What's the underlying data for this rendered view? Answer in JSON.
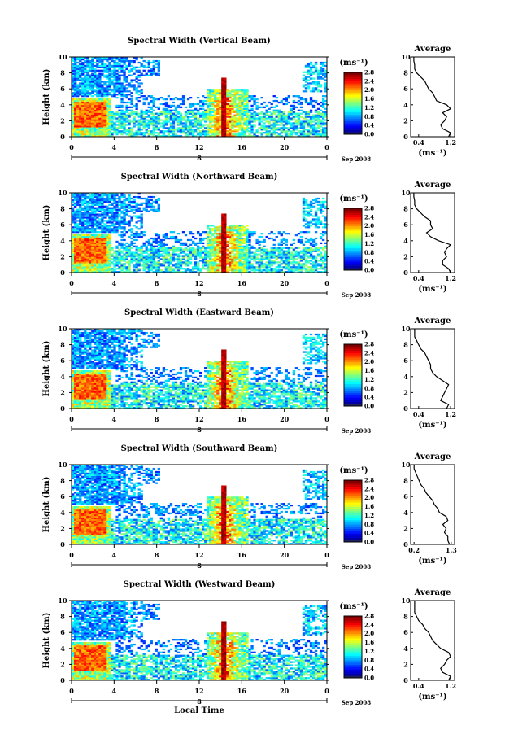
{
  "page": {
    "xlabel_bottom": "Local Time"
  },
  "chart_data": [
    {
      "type": "heatmap",
      "title": "Spectral Width (Vertical Beam)",
      "ylabel": "Height (km)",
      "xticks": [
        "0",
        "4",
        "8",
        "12",
        "16",
        "20",
        "0"
      ],
      "date_marker": "8",
      "date_label": "Sep 2008",
      "ylim": [
        0,
        10
      ],
      "yticks": [
        "0",
        "2",
        "4",
        "6",
        "8",
        "10"
      ],
      "colorbar": {
        "unit": "(ms⁻¹)",
        "ticks": [
          "0.0",
          "0.4",
          "0.8",
          "1.2",
          "1.6",
          "2.0",
          "2.4",
          "2.8"
        ],
        "range": [
          0,
          2.8
        ]
      },
      "average": {
        "title": "Average",
        "xlabel": "(ms⁻¹)",
        "xticks": [
          "0.4",
          "1.2"
        ],
        "xlim": [
          0.2,
          1.3
        ],
        "heights": [
          0,
          0.5,
          1,
          1.5,
          2,
          2.5,
          3,
          3.5,
          4,
          4.5,
          5,
          5.5,
          6,
          6.5,
          7,
          7.5,
          8,
          8.5,
          9,
          9.5,
          10
        ],
        "values": [
          1.15,
          1.2,
          1.0,
          0.95,
          1.05,
          1.1,
          1.0,
          1.2,
          1.1,
          0.85,
          0.8,
          0.75,
          0.65,
          0.6,
          0.55,
          0.45,
          0.35,
          0.3,
          0.3,
          0.28,
          0.28
        ]
      }
    },
    {
      "type": "heatmap",
      "title": "Spectral Width (Northward Beam)",
      "ylabel": "Height (km)",
      "xticks": [
        "0",
        "4",
        "8",
        "12",
        "16",
        "20",
        "0"
      ],
      "date_marker": "8",
      "date_label": "Sep 2008",
      "ylim": [
        0,
        10
      ],
      "yticks": [
        "0",
        "2",
        "4",
        "6",
        "8",
        "10"
      ],
      "colorbar": {
        "unit": "(ms⁻¹)",
        "ticks": [
          "0.0",
          "0.4",
          "0.8",
          "1.2",
          "1.6",
          "2.0",
          "2.4",
          "2.8"
        ],
        "range": [
          0,
          2.8
        ]
      },
      "average": {
        "title": "Average",
        "xlabel": "(ms⁻¹)",
        "xticks": [
          "0.4",
          "1.2"
        ],
        "xlim": [
          0.2,
          1.3
        ],
        "heights": [
          0,
          0.5,
          1,
          1.5,
          2,
          2.5,
          3,
          3.5,
          4,
          4.5,
          5,
          5.5,
          6,
          6.5,
          7,
          7.5,
          8,
          8.5,
          9,
          9.5,
          10
        ],
        "values": [
          1.2,
          1.15,
          1.0,
          1.0,
          1.1,
          1.05,
          1.1,
          1.2,
          0.9,
          0.7,
          0.6,
          0.75,
          0.7,
          0.7,
          0.55,
          0.45,
          0.35,
          0.3,
          0.3,
          0.28,
          0.28
        ]
      }
    },
    {
      "type": "heatmap",
      "title": "Spectral Width (Eastward Beam)",
      "ylabel": "Height (km)",
      "xticks": [
        "0",
        "4",
        "8",
        "12",
        "16",
        "20",
        "0"
      ],
      "date_marker": "8",
      "date_label": "Sep 2008",
      "ylim": [
        0,
        10
      ],
      "yticks": [
        "0",
        "2",
        "4",
        "6",
        "8",
        "10"
      ],
      "colorbar": {
        "unit": "(ms⁻¹)",
        "ticks": [
          "0.0",
          "0.4",
          "0.8",
          "1.2",
          "1.6",
          "2.0",
          "2.4",
          "2.8"
        ],
        "range": [
          0,
          2.8
        ]
      },
      "average": {
        "title": "Average",
        "xlabel": "(ms⁻¹)",
        "xticks": [
          "0.4",
          "1.2"
        ],
        "xlim": [
          0.2,
          1.3
        ],
        "heights": [
          0,
          0.5,
          1,
          1.5,
          2,
          2.5,
          3,
          3.5,
          4,
          4.5,
          5,
          5.5,
          6,
          6.5,
          7,
          7.5,
          8,
          8.5,
          9,
          9.5,
          10
        ],
        "values": [
          1.1,
          1.15,
          0.95,
          1.0,
          1.05,
          1.1,
          1.15,
          1.0,
          0.85,
          0.75,
          0.7,
          0.7,
          0.65,
          0.6,
          0.55,
          0.45,
          0.4,
          0.35,
          0.3,
          0.3,
          0.3
        ]
      }
    },
    {
      "type": "heatmap",
      "title": "Spectral Width (Southward Beam)",
      "ylabel": "Height (km)",
      "xticks": [
        "0",
        "4",
        "8",
        "12",
        "16",
        "20",
        "0"
      ],
      "date_marker": "8",
      "date_label": "Sep 2008",
      "ylim": [
        0,
        10
      ],
      "yticks": [
        "0",
        "2",
        "4",
        "6",
        "8",
        "10"
      ],
      "colorbar": {
        "unit": "(ms⁻¹)",
        "ticks": [
          "0.0",
          "0.4",
          "0.8",
          "1.2",
          "1.6",
          "2.0",
          "2.4",
          "2.8"
        ],
        "range": [
          0,
          2.8
        ]
      },
      "average": {
        "title": "Average",
        "xlabel": "(ms⁻¹)",
        "xticks": [
          "0.2",
          "1.3"
        ],
        "xlim": [
          0.1,
          1.4
        ],
        "heights": [
          0,
          0.5,
          1,
          1.5,
          2,
          2.5,
          3,
          3.5,
          4,
          4.5,
          5,
          5.5,
          6,
          6.5,
          7,
          7.5,
          8,
          8.5,
          9,
          9.5,
          10
        ],
        "values": [
          1.25,
          1.2,
          1.2,
          1.1,
          1.15,
          1.05,
          1.2,
          1.15,
          0.95,
          0.9,
          0.8,
          0.75,
          0.65,
          0.55,
          0.5,
          0.4,
          0.35,
          0.3,
          0.25,
          0.2,
          0.2
        ]
      }
    },
    {
      "type": "heatmap",
      "title": "Spectral Width (Westward Beam)",
      "ylabel": "Height (km)",
      "xticks": [
        "0",
        "4",
        "8",
        "12",
        "16",
        "20",
        "0"
      ],
      "date_marker": "8",
      "date_label": "Sep 2008",
      "ylim": [
        0,
        10
      ],
      "yticks": [
        "0",
        "2",
        "4",
        "6",
        "8",
        "10"
      ],
      "colorbar": {
        "unit": "(ms⁻¹)",
        "ticks": [
          "0.0",
          "0.4",
          "0.8",
          "1.2",
          "1.6",
          "2.0",
          "2.4",
          "2.8"
        ],
        "range": [
          0,
          2.8
        ]
      },
      "average": {
        "title": "Average",
        "xlabel": "(ms⁻¹)",
        "xticks": [
          "0.4",
          "1.2"
        ],
        "xlim": [
          0.2,
          1.3
        ],
        "heights": [
          0,
          0.5,
          1,
          1.5,
          2,
          2.5,
          3,
          3.5,
          4,
          4.5,
          5,
          5.5,
          6,
          6.5,
          7,
          7.5,
          8,
          8.5,
          9,
          9.5,
          10
        ],
        "values": [
          1.15,
          1.2,
          1.0,
          0.95,
          1.05,
          1.1,
          1.2,
          1.15,
          0.95,
          0.85,
          0.75,
          0.7,
          0.65,
          0.55,
          0.5,
          0.4,
          0.35,
          0.3,
          0.3,
          0.3,
          0.3
        ]
      }
    }
  ]
}
